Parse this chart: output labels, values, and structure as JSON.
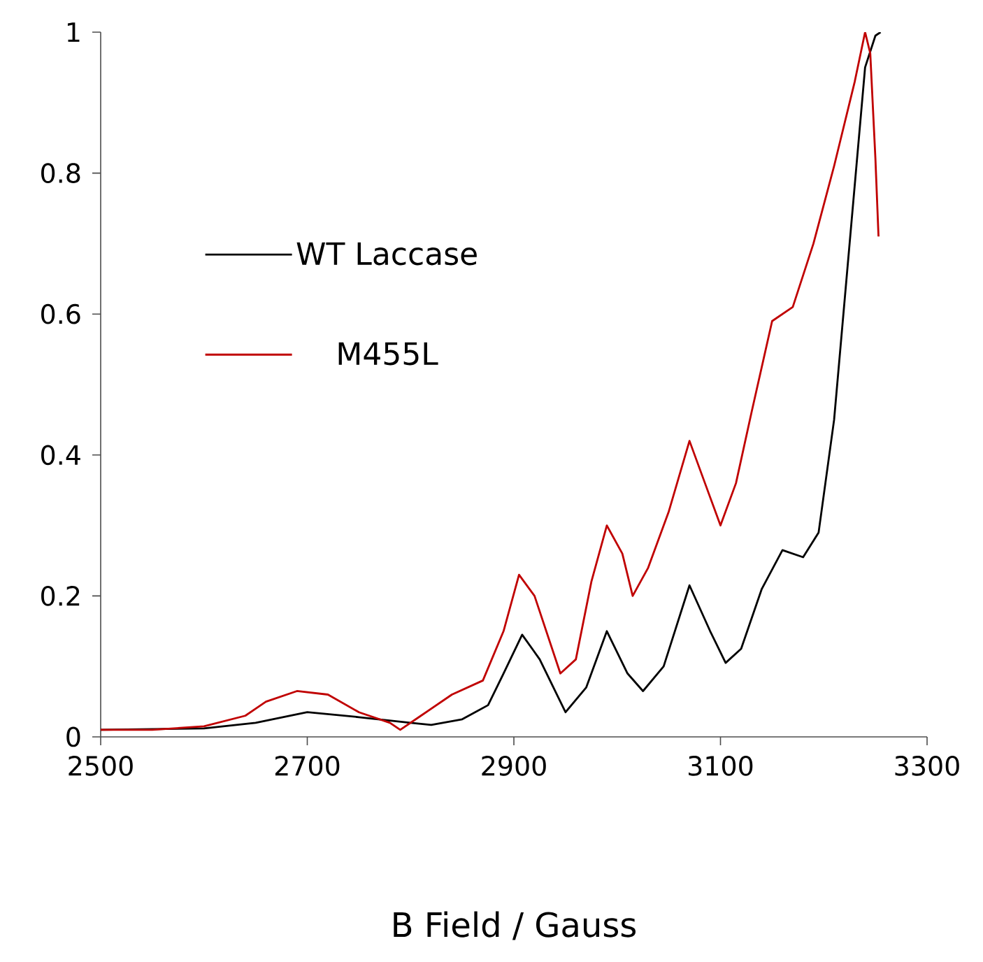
{
  "chart_data": {
    "type": "line",
    "xlabel": "B Field / Gauss",
    "xlim": [
      2500,
      3300
    ],
    "ylim": [
      0,
      1
    ],
    "xticks": [
      2500,
      2700,
      2900,
      3100,
      3300
    ],
    "yticks": [
      0,
      0.2,
      0.4,
      0.6,
      0.8,
      1
    ],
    "legend": "left",
    "marker": "none",
    "series": [
      {
        "name": "WT Laccase",
        "color": "#000000",
        "x": [
          2500,
          2600,
          2650,
          2700,
          2750,
          2800,
          2820,
          2850,
          2875,
          2890,
          2908,
          2925,
          2950,
          2970,
          2990,
          3010,
          3025,
          3045,
          3070,
          3090,
          3105,
          3120,
          3140,
          3160,
          3180,
          3195,
          3210,
          3225,
          3240,
          3250,
          3255
        ],
        "values": [
          0.01,
          0.012,
          0.02,
          0.035,
          0.028,
          0.02,
          0.017,
          0.025,
          0.045,
          0.09,
          0.145,
          0.11,
          0.035,
          0.07,
          0.15,
          0.09,
          0.065,
          0.1,
          0.215,
          0.15,
          0.105,
          0.125,
          0.21,
          0.265,
          0.255,
          0.29,
          0.45,
          0.7,
          0.95,
          0.995,
          1.0
        ]
      },
      {
        "name": "M455L",
        "color": "#c00000",
        "x": [
          2500,
          2550,
          2600,
          2640,
          2660,
          2690,
          2720,
          2750,
          2780,
          2790,
          2810,
          2840,
          2870,
          2890,
          2905,
          2920,
          2945,
          2960,
          2975,
          2990,
          3005,
          3015,
          3030,
          3050,
          3070,
          3085,
          3100,
          3115,
          3130,
          3150,
          3170,
          3190,
          3210,
          3230,
          3240,
          3245,
          3250,
          3253
        ],
        "values": [
          0.01,
          0.01,
          0.015,
          0.03,
          0.05,
          0.065,
          0.06,
          0.035,
          0.02,
          0.01,
          0.03,
          0.06,
          0.08,
          0.15,
          0.23,
          0.2,
          0.09,
          0.11,
          0.22,
          0.3,
          0.26,
          0.2,
          0.24,
          0.32,
          0.42,
          0.36,
          0.3,
          0.36,
          0.46,
          0.59,
          0.61,
          0.7,
          0.81,
          0.93,
          1.0,
          0.97,
          0.82,
          0.71
        ]
      }
    ]
  }
}
